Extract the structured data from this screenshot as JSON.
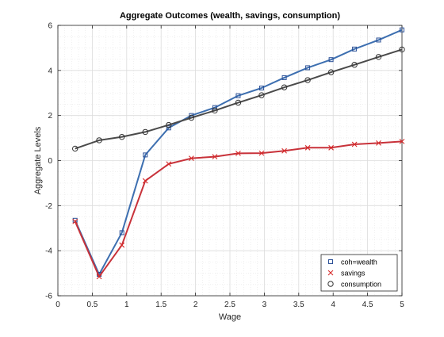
{
  "chart_data": {
    "type": "line",
    "title": "Aggregate Outcomes (wealth, savings, consumption)",
    "xlabel": "Wage",
    "ylabel": "Aggregate Levels",
    "xlim": [
      0,
      5
    ],
    "ylim": [
      -6,
      6
    ],
    "xticks": [
      0,
      0.5,
      1,
      1.5,
      2,
      2.5,
      3,
      3.5,
      4,
      4.5,
      5
    ],
    "xtick_labels": [
      "0",
      "0.5",
      "1",
      "1.5",
      "2",
      "2.5",
      "3",
      "3.5",
      "4",
      "4.5",
      "5"
    ],
    "yticks": [
      -6,
      -4,
      -2,
      0,
      2,
      4,
      6
    ],
    "ytick_labels": [
      "-6",
      "-4",
      "-2",
      "0",
      "2",
      "4",
      "6"
    ],
    "grid": true,
    "legend_position": "bottom-right",
    "x": [
      0.25,
      0.6,
      0.93,
      1.27,
      1.61,
      1.94,
      2.28,
      2.62,
      2.96,
      3.29,
      3.63,
      3.97,
      4.31,
      4.66,
      5.0
    ],
    "series": [
      {
        "name": "coh=wealth",
        "marker": "square",
        "marker_color": "#2a4f96",
        "line_color": "#3d6fb0",
        "values": [
          -2.65,
          -5.05,
          -3.2,
          0.25,
          1.45,
          2.0,
          2.35,
          2.88,
          3.22,
          3.68,
          4.12,
          4.48,
          4.95,
          5.35,
          5.8
        ]
      },
      {
        "name": "savings",
        "marker": "x",
        "marker_color": "#d62a2a",
        "line_color": "#c8323a",
        "values": [
          -2.7,
          -5.15,
          -3.75,
          -0.9,
          -0.15,
          0.1,
          0.17,
          0.32,
          0.33,
          0.43,
          0.57,
          0.57,
          0.72,
          0.78,
          0.85
        ]
      },
      {
        "name": "consumption",
        "marker": "circle",
        "marker_color": "#333333",
        "line_color": "#4a4a4a",
        "values": [
          0.53,
          0.9,
          1.05,
          1.27,
          1.58,
          1.9,
          2.22,
          2.57,
          2.9,
          3.25,
          3.57,
          3.92,
          4.25,
          4.6,
          4.93
        ]
      }
    ]
  }
}
